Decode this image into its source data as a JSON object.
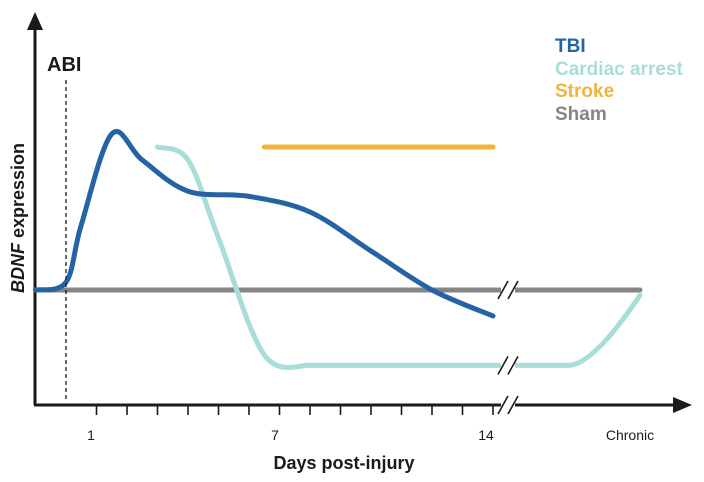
{
  "chart_data": {
    "type": "line",
    "title": "",
    "xlabel": "Days post-injury",
    "ylabel_italic": "BDNF",
    "ylabel_rest": " expression",
    "event_marker": {
      "label": "ABI",
      "day": 0
    },
    "x_ticks": [
      {
        "label": "1",
        "value": 1
      },
      {
        "label": "7",
        "value": 7
      },
      {
        "label": "14",
        "value": 14
      },
      {
        "label": "Chronic",
        "value": "chronic"
      }
    ],
    "y_units": "relative expression (sham = baseline)",
    "colors": {
      "TBI": "#2563a5",
      "Cardiac arrest": "#a8ddd8",
      "Stroke": "#f2b33d",
      "Sham": "#858585",
      "axis": "#1a1a1a"
    },
    "legend": [
      "TBI",
      "Cardiac arrest",
      "Stroke",
      "Sham"
    ],
    "series": [
      {
        "name": "TBI",
        "points": [
          [
            -1,
            0
          ],
          [
            0,
            0.3
          ],
          [
            0.5,
            2.5
          ],
          [
            1.5,
            6
          ],
          [
            2.5,
            5
          ],
          [
            4,
            3.8
          ],
          [
            6,
            3.6
          ],
          [
            8,
            3
          ],
          [
            10,
            1.5
          ],
          [
            12,
            0
          ],
          [
            14,
            -1
          ]
        ]
      },
      {
        "name": "Cardiac arrest",
        "points": [
          [
            3,
            5.5
          ],
          [
            4,
            5
          ],
          [
            5,
            2
          ],
          [
            6.5,
            -2.5
          ],
          [
            8,
            -2.9
          ],
          [
            14,
            -2.9
          ],
          [
            "chronic_pre",
            -2.9
          ],
          [
            "chronic",
            -0.2
          ]
        ]
      },
      {
        "name": "Stroke",
        "points": [
          [
            6.5,
            5.5
          ],
          [
            14,
            5.5
          ]
        ]
      },
      {
        "name": "Sham",
        "points": [
          [
            -1,
            0
          ],
          [
            14,
            0
          ],
          [
            "chronic",
            0
          ]
        ]
      }
    ]
  }
}
